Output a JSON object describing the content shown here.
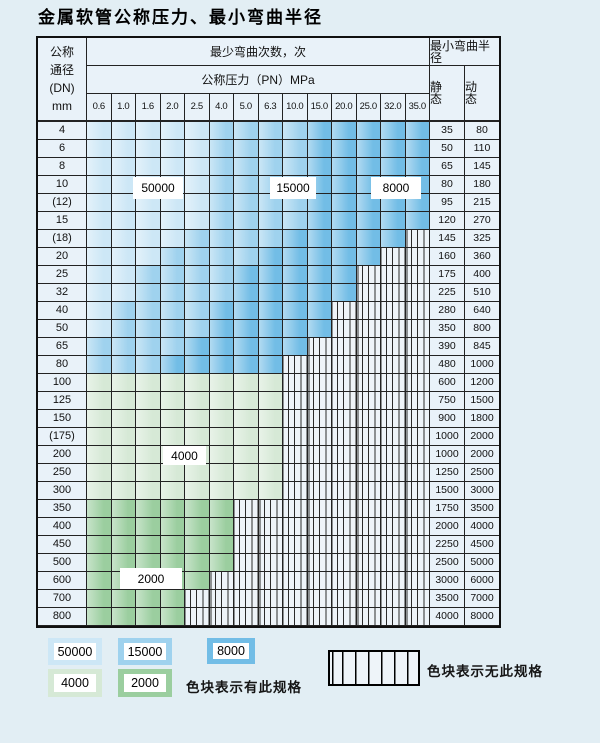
{
  "title": "金属软管公称压力、最小弯曲半径",
  "table": {
    "dn_header_lines": [
      "公称",
      "通径",
      "(DN)",
      "mm"
    ],
    "cycles_header": "最少弯曲次数，次",
    "radius_header": "最小弯曲半径",
    "pressure_header": "公称压力（PN）MPa",
    "static_header": "静 态",
    "dynamic_header": "动 态"
  },
  "overlays": {
    "blue_50000": "50000",
    "blue_15000": "15000",
    "blue_8000": "8000",
    "green_4000": "4000",
    "green_2000": "2000"
  },
  "legend": {
    "items": [
      {
        "label": "50000",
        "tone": "blue-light"
      },
      {
        "label": "15000",
        "tone": "blue-medium"
      },
      {
        "label": "8000",
        "tone": "blue-dark"
      },
      {
        "label": "4000",
        "tone": "green-light"
      },
      {
        "label": "2000",
        "tone": "green-medium"
      }
    ],
    "available_note": "色块表示有此规格",
    "unavailable_note": "色块表示无此规格"
  },
  "colors": {
    "blue_light": "#cde7f6",
    "blue_medium": "#9fd2ee",
    "blue_dark": "#72bde6",
    "green_light": "#d6e9d6",
    "green_medium": "#9bce9f",
    "hatch_background": "#eef4f9",
    "grid_line": "#232323",
    "page_background": "#e2eef4"
  },
  "chart_data": {
    "type": "table",
    "title": "金属软管公称压力、最小弯曲半径",
    "cycles_header": "最少弯曲次数，次",
    "pressure_unit_header": "公称压力（PN）MPa",
    "radius_header": "最小弯曲半径",
    "pressures": [
      "0.6",
      "1.0",
      "1.6",
      "2.0",
      "2.5",
      "4.0",
      "5.0",
      "6.3",
      "10.0",
      "15.0",
      "20.0",
      "25.0",
      "32.0",
      "35.0"
    ],
    "band_meaning": {
      "blue": "最少弯曲次数 50000/15000/8000（浅→深）",
      "green-4000": "最少弯曲次数 4000",
      "green-2000": "最少弯曲次数 2000",
      "hatch": "无此规格"
    },
    "rows": [
      {
        "dn": "4",
        "band": "blue",
        "cols": 14,
        "max_pn": "35.0",
        "static": "35",
        "dynamic": "80"
      },
      {
        "dn": "6",
        "band": "blue",
        "cols": 14,
        "max_pn": "35.0",
        "static": "50",
        "dynamic": "110"
      },
      {
        "dn": "8",
        "band": "blue",
        "cols": 14,
        "max_pn": "35.0",
        "static": "65",
        "dynamic": "145"
      },
      {
        "dn": "10",
        "band": "blue",
        "cols": 14,
        "max_pn": "35.0",
        "static": "80",
        "dynamic": "180"
      },
      {
        "dn": "(12)",
        "band": "blue",
        "cols": 14,
        "max_pn": "35.0",
        "static": "95",
        "dynamic": "215"
      },
      {
        "dn": "15",
        "band": "blue",
        "cols": 14,
        "max_pn": "35.0",
        "static": "120",
        "dynamic": "270"
      },
      {
        "dn": "(18)",
        "band": "blue",
        "cols": 13,
        "max_pn": "32.0",
        "static": "145",
        "dynamic": "325"
      },
      {
        "dn": "20",
        "band": "blue",
        "cols": 12,
        "max_pn": "25.0",
        "static": "160",
        "dynamic": "360"
      },
      {
        "dn": "25",
        "band": "blue",
        "cols": 11,
        "max_pn": "20.0",
        "static": "175",
        "dynamic": "400"
      },
      {
        "dn": "32",
        "band": "blue",
        "cols": 11,
        "max_pn": "20.0",
        "static": "225",
        "dynamic": "510"
      },
      {
        "dn": "40",
        "band": "blue",
        "cols": 10,
        "max_pn": "15.0",
        "static": "280",
        "dynamic": "640"
      },
      {
        "dn": "50",
        "band": "blue",
        "cols": 10,
        "max_pn": "15.0",
        "static": "350",
        "dynamic": "800"
      },
      {
        "dn": "65",
        "band": "blue",
        "cols": 9,
        "max_pn": "10.0",
        "static": "390",
        "dynamic": "845"
      },
      {
        "dn": "80",
        "band": "blue",
        "cols": 8,
        "max_pn": "6.3",
        "static": "480",
        "dynamic": "1000"
      },
      {
        "dn": "100",
        "band": "green-4000",
        "cols": 8,
        "max_pn": "6.3",
        "static": "600",
        "dynamic": "1200"
      },
      {
        "dn": "125",
        "band": "green-4000",
        "cols": 8,
        "max_pn": "6.3",
        "static": "750",
        "dynamic": "1500"
      },
      {
        "dn": "150",
        "band": "green-4000",
        "cols": 8,
        "max_pn": "6.3",
        "static": "900",
        "dynamic": "1800"
      },
      {
        "dn": "(175)",
        "band": "green-4000",
        "cols": 8,
        "max_pn": "6.3",
        "static": "1000",
        "dynamic": "2000"
      },
      {
        "dn": "200",
        "band": "green-4000",
        "cols": 8,
        "max_pn": "6.3",
        "static": "1000",
        "dynamic": "2000"
      },
      {
        "dn": "250",
        "band": "green-4000",
        "cols": 8,
        "max_pn": "6.3",
        "static": "1250",
        "dynamic": "2500"
      },
      {
        "dn": "300",
        "band": "green-4000",
        "cols": 8,
        "max_pn": "6.3",
        "static": "1500",
        "dynamic": "3000"
      },
      {
        "dn": "350",
        "band": "green-2000",
        "cols": 6,
        "max_pn": "4.0",
        "static": "1750",
        "dynamic": "3500"
      },
      {
        "dn": "400",
        "band": "green-2000",
        "cols": 6,
        "max_pn": "4.0",
        "static": "2000",
        "dynamic": "4000"
      },
      {
        "dn": "450",
        "band": "green-2000",
        "cols": 6,
        "max_pn": "4.0",
        "static": "2250",
        "dynamic": "4500"
      },
      {
        "dn": "500",
        "band": "green-2000",
        "cols": 6,
        "max_pn": "4.0",
        "static": "2500",
        "dynamic": "5000"
      },
      {
        "dn": "600",
        "band": "green-2000",
        "cols": 5,
        "max_pn": "2.5",
        "static": "3000",
        "dynamic": "6000"
      },
      {
        "dn": "700",
        "band": "green-2000",
        "cols": 4,
        "max_pn": "2.0",
        "static": "3500",
        "dynamic": "7000"
      },
      {
        "dn": "800",
        "band": "green-2000",
        "cols": 4,
        "max_pn": "2.0",
        "static": "4000",
        "dynamic": "8000"
      }
    ]
  }
}
